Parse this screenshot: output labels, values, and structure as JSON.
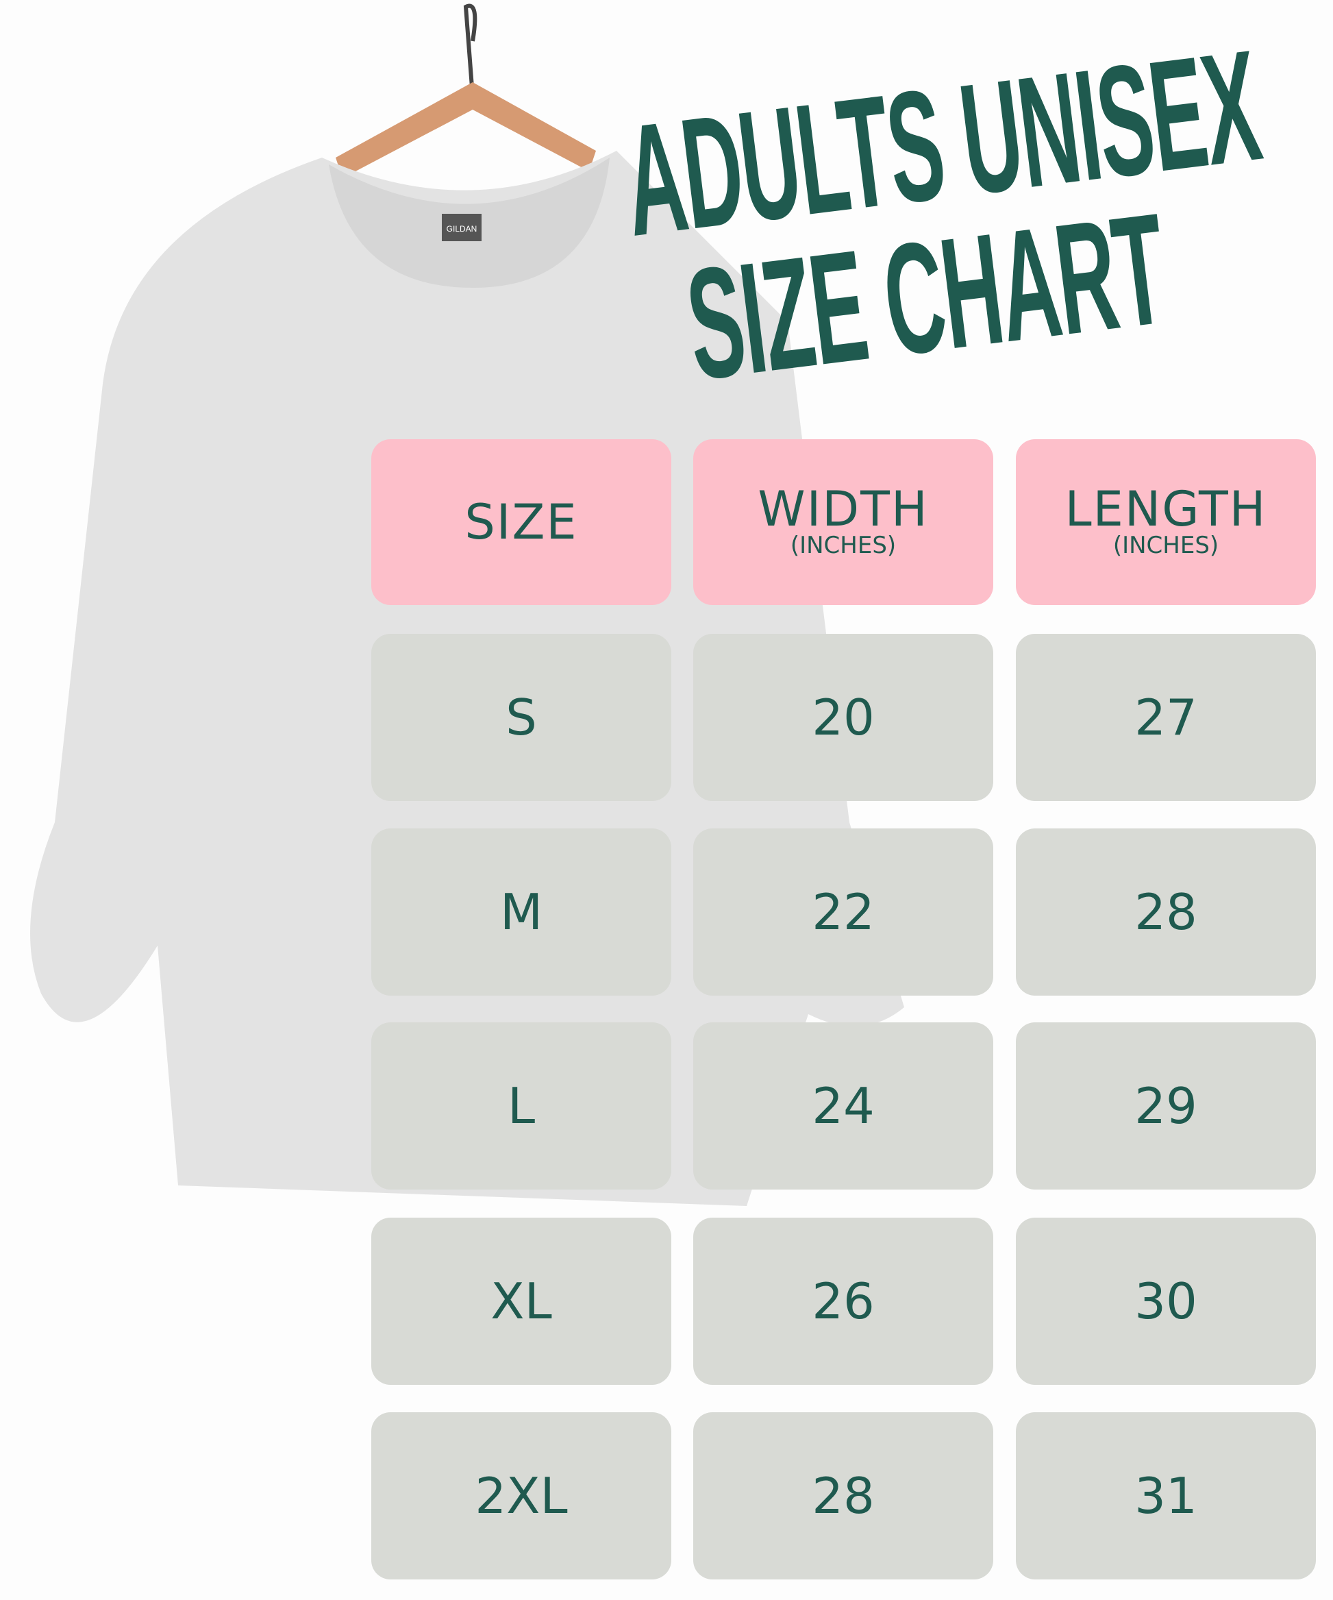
{
  "title": {
    "line1": "ADULTS UNISEX",
    "line2": "SIZE CHART"
  },
  "colors": {
    "header_bg": "#fdbfca",
    "cell_bg": "#d8dad5",
    "text": "#1f5a4f"
  },
  "image": {
    "description_icon": "sweatshirt-on-hanger",
    "tag_label": "GILDAN"
  },
  "table": {
    "headers": [
      {
        "label": "SIZE",
        "sub": ""
      },
      {
        "label": "WIDTH",
        "sub": "(INCHES)"
      },
      {
        "label": "LENGTH",
        "sub": "(INCHES)"
      }
    ],
    "rows": [
      [
        "S",
        "20",
        "27"
      ],
      [
        "M",
        "22",
        "28"
      ],
      [
        "L",
        "24",
        "29"
      ],
      [
        "XL",
        "26",
        "30"
      ],
      [
        "2XL",
        "28",
        "31"
      ]
    ]
  }
}
